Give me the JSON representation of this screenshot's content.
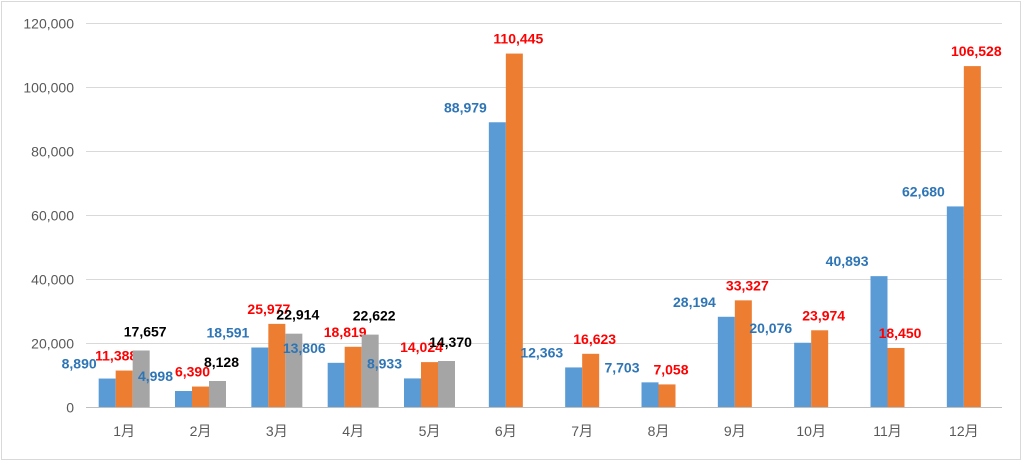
{
  "chart_data": {
    "type": "bar",
    "categories": [
      "1月",
      "2月",
      "3月",
      "4月",
      "5月",
      "6月",
      "7月",
      "8月",
      "9月",
      "10月",
      "11月",
      "12月"
    ],
    "series": [
      {
        "color": "#5b9bd5",
        "label_color": "#2e75b6",
        "values": [
          8890,
          4998,
          18591,
          13806,
          8933,
          88979,
          12363,
          7703,
          28194,
          20076,
          40893,
          62680
        ],
        "labels": [
          "8,890",
          "4,998",
          "18,591",
          "13,806",
          "8,933",
          "88,979",
          "12,363",
          "7,703",
          "28,194",
          "20,076",
          "40,893",
          "62,680"
        ]
      },
      {
        "color": "#ed7d31",
        "label_color": "#ff0000",
        "values": [
          11388,
          6390,
          25977,
          18819,
          14024,
          110445,
          16623,
          7058,
          33327,
          23974,
          18450,
          106528
        ],
        "labels": [
          "11,388",
          "6,390",
          "25,977",
          "18,819",
          "14,024",
          "110,445",
          "16,623",
          "7,058",
          "33,327",
          "23,974",
          "18,450",
          "106,528"
        ]
      },
      {
        "color": "#a5a5a5",
        "label_color": "#000000",
        "values": [
          17657,
          8128,
          22914,
          22622,
          14370,
          null,
          null,
          null,
          null,
          null,
          null,
          null
        ],
        "labels": [
          "17,657",
          "8,128",
          "22,914",
          "22,622",
          "14,370",
          "",
          "",
          "",
          "",
          "",
          "",
          ""
        ]
      }
    ],
    "ylim": [
      0,
      120000
    ],
    "yticks": [
      0,
      20000,
      40000,
      60000,
      80000,
      100000,
      120000
    ],
    "ytick_labels": [
      "0",
      "20,000",
      "40,000",
      "60,000",
      "80,000",
      "100,000",
      "120,000"
    ],
    "grid": true,
    "title": "",
    "xlabel": "",
    "ylabel": ""
  }
}
